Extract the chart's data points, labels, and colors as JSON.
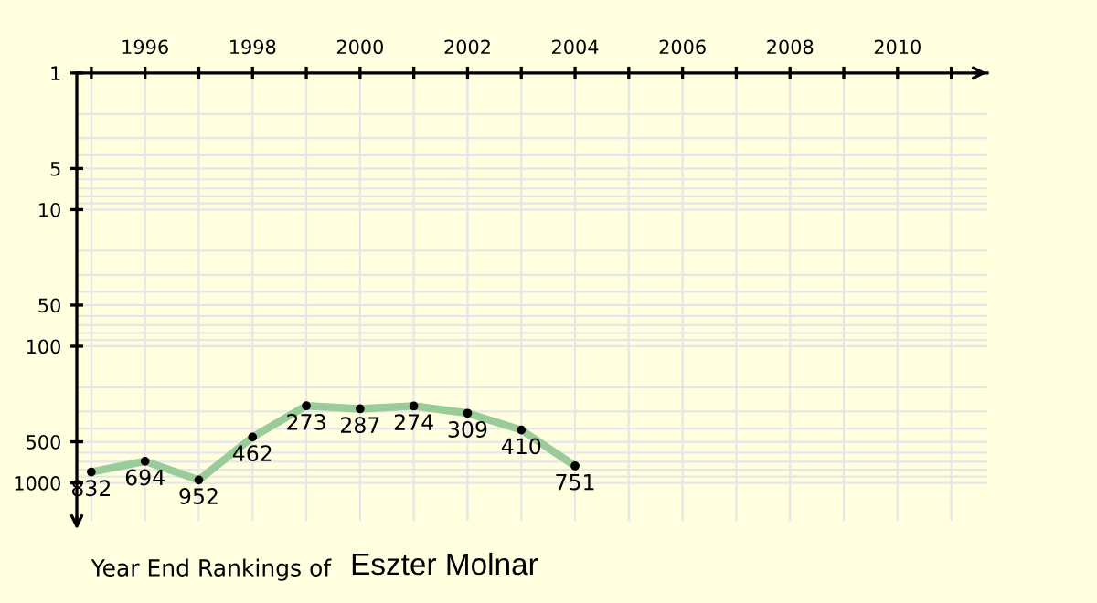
{
  "chart_data": {
    "type": "line",
    "title": "Year End Rankings of",
    "subtitle": "Eszter Molnar",
    "x": [
      1995,
      1996,
      1997,
      1998,
      1999,
      2000,
      2001,
      2002,
      2003,
      2004
    ],
    "series": [
      {
        "color": "#99cc99",
        "values": [
          832,
          694,
          952,
          462,
          273,
          287,
          274,
          309,
          410,
          751
        ]
      }
    ],
    "data_labels": true,
    "marker": "circle",
    "line_style": "solid",
    "log": true,
    "xlim": [
      1994.73,
      2011.67
    ],
    "xticks": [
      {
        "value": 1995,
        "label": null
      },
      1996,
      {
        "value": 1997,
        "label": null
      },
      1998,
      {
        "value": 1999,
        "label": null
      },
      2000,
      {
        "value": 2001,
        "label": null
      },
      2002,
      {
        "value": 2003,
        "label": null
      },
      2004,
      {
        "value": 2005,
        "label": null
      },
      2006,
      {
        "value": 2007,
        "label": null
      },
      2008,
      {
        "value": 2009,
        "label": null
      },
      2010,
      {
        "value": 2011,
        "label": null
      }
    ],
    "ylim": [
      1900,
      1
    ],
    "yticks": [
      1,
      {
        "value": 2,
        "label": null
      },
      {
        "value": 3,
        "label": null
      },
      {
        "value": 4,
        "label": null
      },
      5,
      {
        "value": 6,
        "label": null
      },
      {
        "value": 7,
        "label": null
      },
      {
        "value": 8,
        "label": null
      },
      {
        "value": 9,
        "label": null
      },
      10,
      {
        "value": 20,
        "label": null
      },
      {
        "value": 30,
        "label": null
      },
      {
        "value": 40,
        "label": null
      },
      50,
      {
        "value": 60,
        "label": null
      },
      {
        "value": 70,
        "label": null
      },
      {
        "value": 80,
        "label": null
      },
      {
        "value": 90,
        "label": null
      },
      100,
      {
        "value": 200,
        "label": null
      },
      {
        "value": 300,
        "label": null
      },
      {
        "value": 400,
        "label": null
      },
      500,
      {
        "value": 600,
        "label": null
      },
      {
        "value": 700,
        "label": null
      },
      {
        "value": 800,
        "label": null
      },
      {
        "value": 900,
        "label": null
      },
      1000
    ],
    "grid": true
  }
}
